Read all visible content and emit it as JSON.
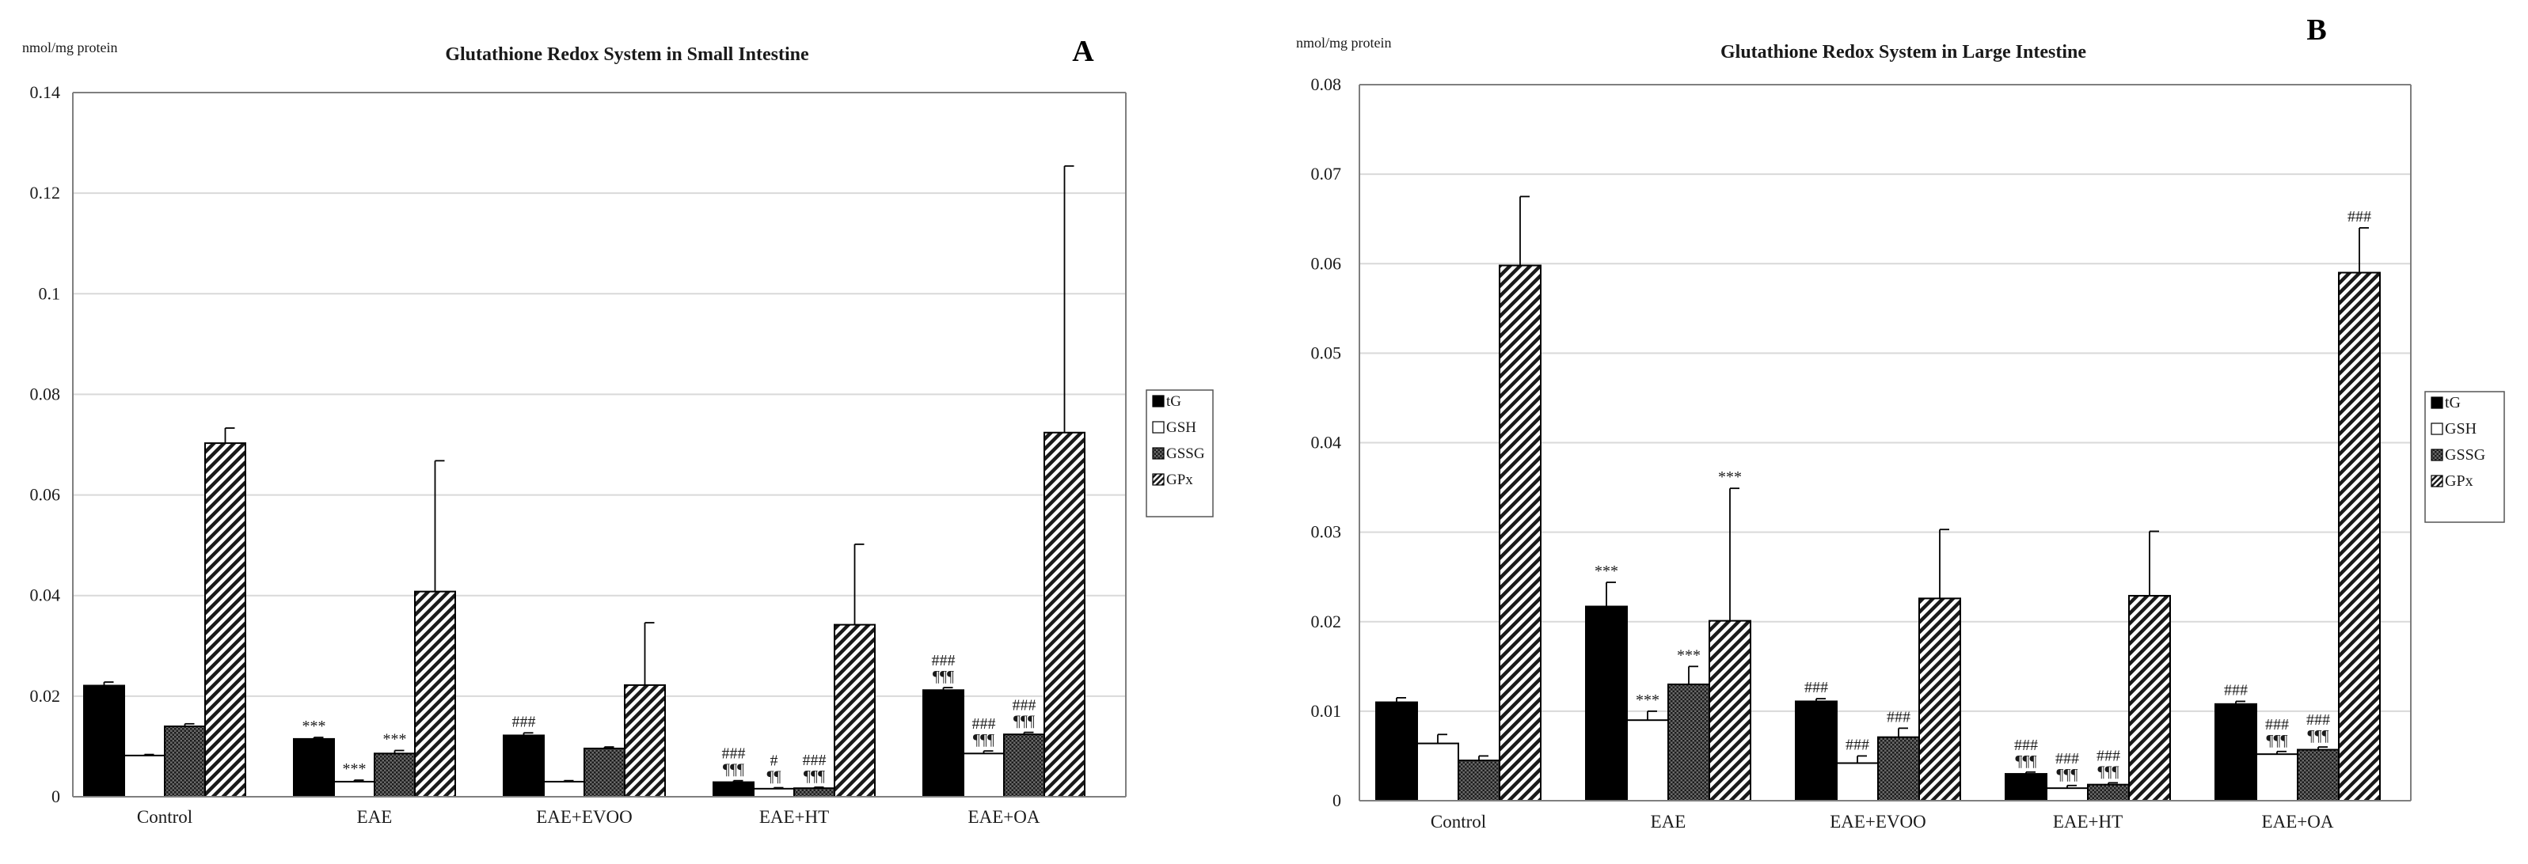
{
  "colors": {
    "tG": "#000000",
    "GSH": "#ffffff",
    "GSSG": "#3d3d3d",
    "GPx": "#ffffff",
    "axis": "#7f7f7f",
    "grid": "#d9d9d9",
    "text": "#1a1a1a"
  },
  "chart_data": [
    {
      "type": "bar",
      "panel_label": "A",
      "title": "Glutathione Redox System in Small Intestine",
      "ylabel": "nmol/mg  protein",
      "xlabel": "",
      "ylim": [
        0,
        0.14
      ],
      "ytick_values": [
        0,
        0.02,
        0.04,
        0.06,
        0.08,
        0.1,
        0.12,
        0.14
      ],
      "ytick_labels": [
        "0",
        "0.02",
        "0.04",
        "0.06",
        "0.08",
        "0.1",
        "0.12",
        "0.14"
      ],
      "grid": true,
      "legend_position": "right",
      "categories": [
        "Control",
        "EAE",
        "EAE+EVOO",
        "EAE+HT",
        "EAE+OA"
      ],
      "series": [
        {
          "name": "tG",
          "pattern": "solid-black",
          "values": [
            0.0221,
            0.0115,
            0.0122,
            0.0029,
            0.0212
          ],
          "errors": [
            0.0007,
            0.0003,
            0.0005,
            0.0003,
            0.0005
          ],
          "annotations": [
            "",
            "***",
            "###",
            "###|¶¶¶",
            "###|¶¶¶"
          ]
        },
        {
          "name": "GSH",
          "pattern": "white",
          "values": [
            0.0082,
            0.003,
            0.003,
            0.0016,
            0.0086
          ],
          "errors": [
            0.0002,
            0.0003,
            0.0002,
            0.0002,
            0.0005
          ],
          "annotations": [
            "",
            "***",
            "",
            "#|¶¶",
            "###|¶¶¶"
          ]
        },
        {
          "name": "GSSG",
          "pattern": "dark-mesh",
          "values": [
            0.014,
            0.0086,
            0.0096,
            0.0017,
            0.0124
          ],
          "errors": [
            0.0005,
            0.0006,
            0.0003,
            0.0002,
            0.0004
          ],
          "annotations": [
            "",
            "***",
            "",
            "###|¶¶¶",
            "###|¶¶¶"
          ]
        },
        {
          "name": "GPx",
          "pattern": "diagonal-hatch",
          "values": [
            0.0703,
            0.0408,
            0.0222,
            0.0342,
            0.0724
          ],
          "errors": [
            0.003,
            0.026,
            0.0124,
            0.016,
            0.053
          ],
          "annotations": [
            "",
            "",
            "",
            "",
            ""
          ]
        }
      ]
    },
    {
      "type": "bar",
      "panel_label": "B",
      "title": "Glutathione Redox System in Large Intestine",
      "ylabel": "nmol/mg  protein",
      "xlabel": "",
      "ylim": [
        0,
        0.08
      ],
      "ytick_values": [
        0,
        0.01,
        0.02,
        0.03,
        0.04,
        0.05,
        0.06,
        0.07,
        0.08
      ],
      "ytick_labels": [
        "0",
        "0.01",
        "0.02",
        "0.03",
        "0.04",
        "0.05",
        "0.06",
        "0.07",
        "0.08"
      ],
      "grid": true,
      "legend_position": "right",
      "categories": [
        "Control",
        "EAE",
        "EAE+EVOO",
        "EAE+HT",
        "EAE+OA"
      ],
      "series": [
        {
          "name": "tG",
          "pattern": "solid-black",
          "values": [
            0.011,
            0.0217,
            0.0111,
            0.003,
            0.0108
          ],
          "errors": [
            0.0005,
            0.0027,
            0.0003,
            0.0002,
            0.0003
          ],
          "annotations": [
            "",
            "***",
            "###",
            "###|¶¶¶",
            "###"
          ]
        },
        {
          "name": "GSH",
          "pattern": "white",
          "values": [
            0.0064,
            0.009,
            0.0042,
            0.0014,
            0.0052
          ],
          "errors": [
            0.001,
            0.001,
            0.0008,
            0.0003,
            0.0003
          ],
          "annotations": [
            "",
            "***",
            "###",
            "###|¶¶¶",
            "###|¶¶¶"
          ]
        },
        {
          "name": "GSSG",
          "pattern": "dark-mesh",
          "values": [
            0.0045,
            0.013,
            0.0071,
            0.0018,
            0.0057
          ],
          "errors": [
            0.0005,
            0.002,
            0.001,
            0.0002,
            0.0003
          ],
          "annotations": [
            "",
            "***",
            "###",
            "###|¶¶¶",
            "###|¶¶¶"
          ]
        },
        {
          "name": "GPx",
          "pattern": "diagonal-hatch",
          "values": [
            0.0598,
            0.0201,
            0.0226,
            0.0229,
            0.059
          ],
          "errors": [
            0.0077,
            0.0148,
            0.0077,
            0.0072,
            0.005
          ],
          "annotations": [
            "",
            "***",
            "",
            "",
            "###"
          ]
        }
      ]
    }
  ]
}
